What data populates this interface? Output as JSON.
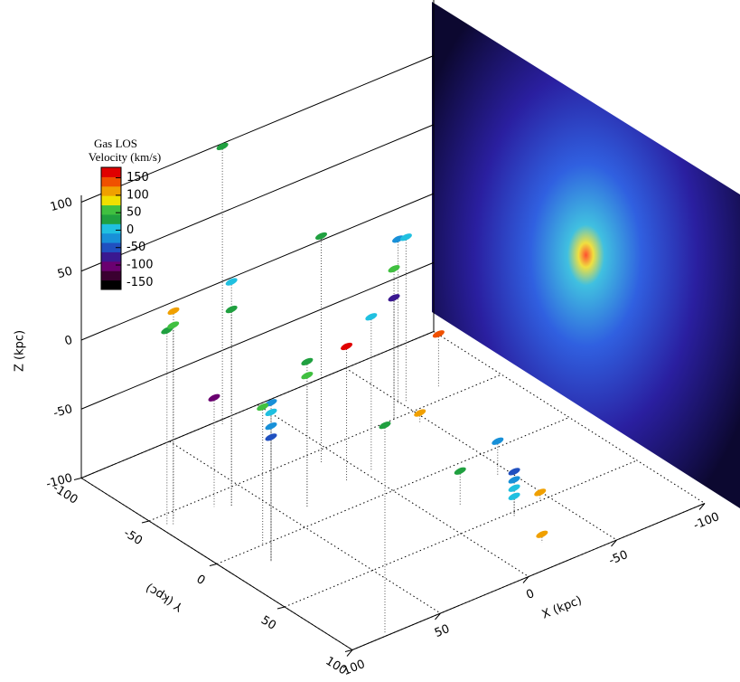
{
  "chart_data": {
    "type": "scatter3d",
    "colorbar": {
      "title_lines": [
        "Gas LOS",
        "Velocity (km/s)"
      ],
      "ticks": [
        150,
        100,
        50,
        0,
        -50,
        -100,
        -150
      ],
      "lim": [
        -170,
        180
      ],
      "colors": [
        "#000000",
        "#3a0030",
        "#6a0070",
        "#3a1890",
        "#2050c0",
        "#1890d8",
        "#20c0e0",
        "#20a040",
        "#40c040",
        "#f0e000",
        "#f0a000",
        "#f05000",
        "#e00000"
      ]
    },
    "xlabel": "X (kpc)",
    "ylabel": "Y (kpc)",
    "zlabel": "Z (kpc)",
    "xlim": [
      -100,
      100
    ],
    "ylim": [
      -100,
      100
    ],
    "zlim": [
      -100,
      100
    ],
    "xticks": [
      -100,
      -50,
      0,
      50,
      100
    ],
    "yticks": [
      -100,
      -50,
      0,
      50,
      100
    ],
    "zticks": [
      -100,
      -50,
      0,
      50,
      100
    ],
    "x": [
      96,
      94,
      90,
      23,
      64,
      64,
      80,
      80,
      80,
      80,
      70,
      38,
      38,
      10,
      11,
      80,
      -49,
      -52,
      -39,
      -39,
      -28,
      -28,
      -28,
      -28,
      -44,
      -45,
      -23,
      -46,
      -72,
      -15,
      -3,
      74
    ],
    "y": [
      -42,
      -40,
      -45,
      -96,
      -36,
      -36,
      14,
      14,
      14,
      14,
      -41,
      -14,
      -14,
      -40,
      -20,
      98,
      -60,
      -58,
      -50,
      -50,
      53,
      53,
      53,
      53,
      20,
      50,
      80,
      -40,
      -60,
      30,
      -20,
      0
    ],
    "z": [
      41,
      45,
      50,
      102,
      63,
      43,
      -2,
      8,
      15,
      -10,
      -21,
      -5,
      5,
      65,
      -2,
      51,
      19,
      20,
      9,
      -12,
      -80,
      -74,
      -68,
      -86,
      -75,
      -94,
      -94,
      -93,
      -62,
      -75,
      12,
      0
    ],
    "values": [
      40,
      60,
      100,
      40,
      10,
      40,
      -10,
      0,
      -30,
      -60,
      -90,
      50,
      40,
      40,
      160,
      40,
      -10,
      0,
      50,
      -80,
      0,
      -20,
      -40,
      10,
      -30,
      110,
      100,
      110,
      130,
      40,
      10,
      50
    ]
  }
}
